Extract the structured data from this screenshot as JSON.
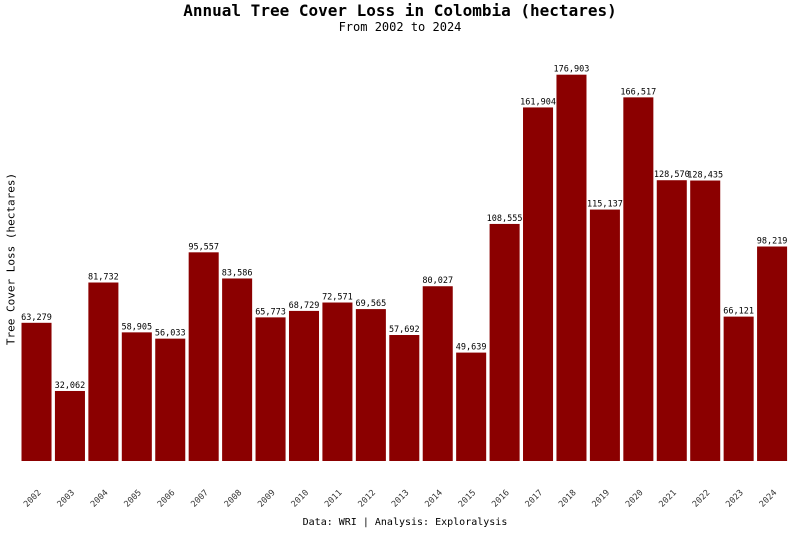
{
  "chart_data": {
    "type": "bar",
    "title": "Annual Tree Cover Loss in Colombia (hectares)",
    "subtitle": "From 2002 to 2024",
    "xlabel": "",
    "ylabel": "Tree Cover Loss (hectares)",
    "caption": "Data: WRI | Analysis: Exploralysis",
    "bar_color": "#8b0000",
    "grid": false,
    "ylim": [
      0,
      185000
    ],
    "categories": [
      "2002",
      "2003",
      "2004",
      "2005",
      "2006",
      "2007",
      "2008",
      "2009",
      "2010",
      "2011",
      "2012",
      "2013",
      "2014",
      "2015",
      "2016",
      "2017",
      "2018",
      "2019",
      "2020",
      "2021",
      "2022",
      "2023",
      "2024"
    ],
    "values": [
      63279,
      32062,
      81732,
      58905,
      56033,
      95557,
      83586,
      65773,
      68729,
      72571,
      69565,
      57692,
      80027,
      49639,
      108555,
      161904,
      176903,
      115137,
      166517,
      128570,
      128435,
      66121,
      98219
    ],
    "value_labels": [
      "63,279",
      "32,062",
      "81,732",
      "58,905",
      "56,033",
      "95,557",
      "83,586",
      "65,773",
      "68,729",
      "72,571",
      "69,565",
      "57,692",
      "80,027",
      "49,639",
      "108,555",
      "161,904",
      "176,903",
      "115,137",
      "166,517",
      "128,570",
      "128,435",
      "66,121",
      "98,219"
    ]
  }
}
